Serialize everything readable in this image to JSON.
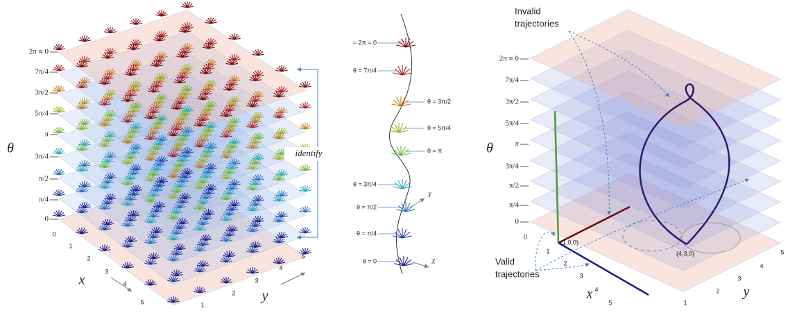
{
  "left": {
    "theta_labels": [
      "2π ≡ 0",
      "7π/4",
      "3π/2",
      "5π/4",
      "π",
      "3π/4",
      "π/2",
      "π/4",
      "0"
    ],
    "theta_axis": "θ",
    "identify": "identify",
    "x_ticks": [
      "0",
      "1",
      "2",
      "3",
      "4",
      "5"
    ],
    "x_axis": "x",
    "y_ticks": [
      "1",
      "2",
      "3",
      "4",
      "5"
    ],
    "y_axis": "y"
  },
  "middle": {
    "labels": [
      "= 2π = 0",
      "θ = 7π/4",
      "θ = 3π/2",
      "θ = 5π/4",
      "θ = π",
      "θ = 3π/4",
      "θ = π/2",
      "θ = π/4",
      "θ = 0"
    ],
    "y_axis": "Y",
    "x_axis": "X"
  },
  "right": {
    "theta_labels": [
      "2π ≡ 0",
      "7π/4",
      "3π/2",
      "5π/4",
      "π",
      "3π/4",
      "π/2",
      "π/4",
      "0"
    ],
    "theta_axis": "θ",
    "invalid": [
      "Invalid",
      "trajectories"
    ],
    "valid": [
      "Valid",
      "trajectories"
    ],
    "points": [
      "(1,0,0)",
      "(4,3,0)"
    ],
    "x_ticks": [
      "0",
      "1",
      "2",
      "3",
      "4",
      "5"
    ],
    "x_axis": "x",
    "y_ticks": [
      "1",
      "2",
      "3",
      "4",
      "5"
    ],
    "y_axis": "y"
  }
}
